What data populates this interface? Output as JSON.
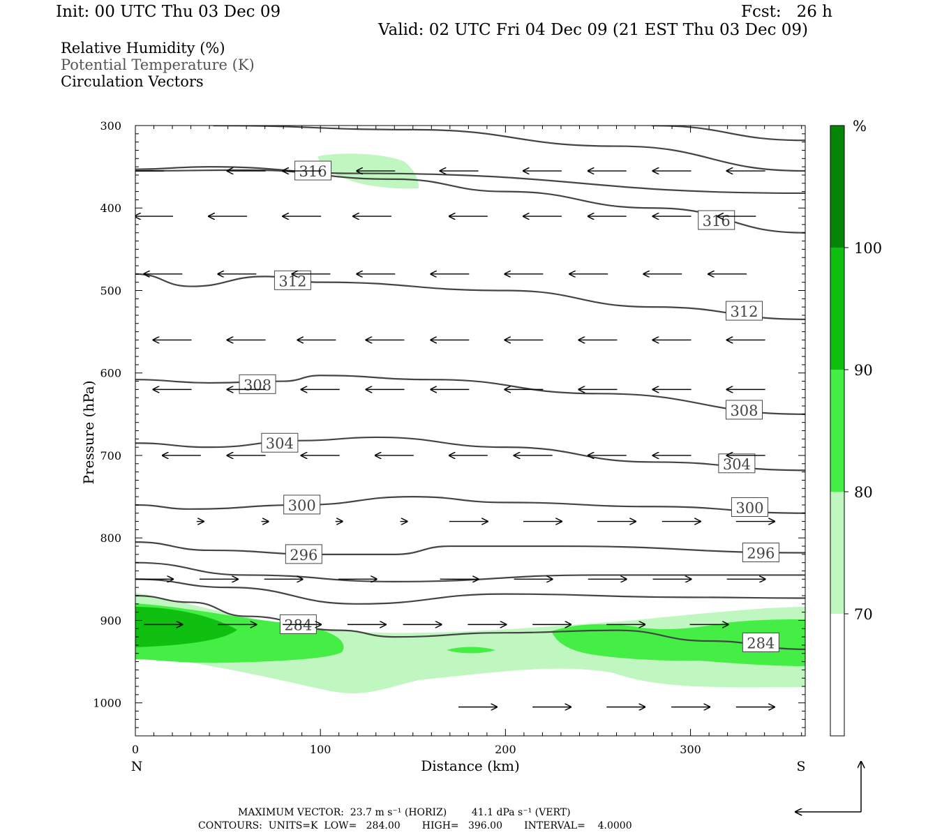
{
  "header": {
    "init": "Init: 00 UTC Thu 03 Dec 09",
    "fcst": "Fcst:   26 h",
    "valid": "Valid: 02 UTC Fri 04 Dec 09 (21 EST Thu 03 Dec 09)"
  },
  "legend": {
    "rh": "Relative Humidity (%)",
    "theta": "Potential Temperature (K)",
    "vectors": "Circulation Vectors"
  },
  "colors": {
    "rh70": "#c0f7c0",
    "rh80": "#44ee44",
    "rh90": "#10c010",
    "rh100": "#058505",
    "contour": "#444444"
  },
  "chart_data": {
    "type": "heatmap",
    "xlabel": "Distance (km)",
    "ylabel": "Pressure (hPa)",
    "xlim": [
      0,
      362
    ],
    "ylim": [
      1040,
      300
    ],
    "x_ticks": [
      0,
      100,
      200,
      300
    ],
    "y_ticks": [
      300,
      400,
      500,
      600,
      700,
      800,
      900,
      1000
    ],
    "x_end_labels": [
      "N",
      "S"
    ],
    "colorbar": {
      "unit": "%",
      "levels": [
        70,
        80,
        90,
        100
      ],
      "colors": [
        "#ffffff",
        "#c0f7c0",
        "#44ee44",
        "#10c010",
        "#058505"
      ]
    },
    "contours": [
      {
        "level": 284,
        "points": [
          [
            0,
            870
          ],
          [
            30,
            878
          ],
          [
            60,
            895
          ],
          [
            110,
            912
          ],
          [
            140,
            920
          ],
          [
            200,
            915
          ],
          [
            260,
            912
          ],
          [
            310,
            925
          ],
          [
            362,
            935
          ]
        ],
        "label_at": [
          [
            88,
            905
          ],
          [
            338,
            927
          ]
        ]
      },
      {
        "level": 288,
        "points": [
          [
            0,
            850
          ],
          [
            50,
            860
          ],
          [
            120,
            880
          ],
          [
            200,
            868
          ],
          [
            300,
            872
          ],
          [
            362,
            873
          ]
        ],
        "label_at": []
      },
      {
        "level": 292,
        "points": [
          [
            0,
            830
          ],
          [
            60,
            845
          ],
          [
            140,
            853
          ],
          [
            250,
            845
          ],
          [
            362,
            845
          ]
        ],
        "label_at": []
      },
      {
        "level": 296,
        "points": [
          [
            0,
            805
          ],
          [
            40,
            815
          ],
          [
            100,
            820
          ],
          [
            140,
            820
          ],
          [
            170,
            810
          ],
          [
            230,
            810
          ],
          [
            362,
            818
          ]
        ],
        "label_at": [
          [
            91,
            820
          ],
          [
            338,
            818
          ]
        ]
      },
      {
        "level": 300,
        "points": [
          [
            0,
            760
          ],
          [
            30,
            765
          ],
          [
            90,
            760
          ],
          [
            150,
            750
          ],
          [
            200,
            757
          ],
          [
            280,
            762
          ],
          [
            362,
            770
          ]
        ],
        "label_at": [
          [
            90,
            760
          ],
          [
            332,
            763
          ]
        ]
      },
      {
        "level": 304,
        "points": [
          [
            0,
            685
          ],
          [
            40,
            690
          ],
          [
            90,
            682
          ],
          [
            130,
            678
          ],
          [
            200,
            690
          ],
          [
            280,
            708
          ],
          [
            362,
            718
          ]
        ],
        "label_at": [
          [
            78,
            685
          ],
          [
            325,
            710
          ]
        ]
      },
      {
        "level": 308,
        "points": [
          [
            0,
            608
          ],
          [
            40,
            612
          ],
          [
            80,
            610
          ],
          [
            100,
            603
          ],
          [
            160,
            608
          ],
          [
            250,
            625
          ],
          [
            362,
            650
          ]
        ],
        "label_at": [
          [
            66,
            614
          ],
          [
            329,
            645
          ]
        ]
      },
      {
        "level": 312,
        "points": [
          [
            0,
            480
          ],
          [
            30,
            495
          ],
          [
            70,
            483
          ],
          [
            100,
            490
          ],
          [
            200,
            500
          ],
          [
            280,
            520
          ],
          [
            362,
            535
          ]
        ],
        "label_at": [
          [
            85,
            488
          ],
          [
            329,
            525
          ]
        ]
      },
      {
        "level": 316,
        "points": [
          [
            0,
            355
          ],
          [
            60,
            354
          ],
          [
            140,
            365
          ],
          [
            200,
            380
          ],
          [
            280,
            400
          ],
          [
            362,
            430
          ]
        ],
        "label_at": [
          [
            96,
            355
          ],
          [
            314,
            415
          ]
        ]
      },
      {
        "level": 320,
        "points": [
          [
            0,
            353
          ],
          [
            40,
            350
          ],
          [
            120,
            358
          ],
          [
            362,
            382
          ]
        ],
        "label_at": []
      },
      {
        "level": 324,
        "points": [
          [
            42,
            300
          ],
          [
            150,
            305
          ],
          [
            260,
            325
          ],
          [
            362,
            355
          ]
        ],
        "label_at": []
      },
      {
        "level": 328,
        "points": [
          [
            279,
            300
          ],
          [
            362,
            318
          ]
        ],
        "label_at": []
      }
    ],
    "vector_rows": [
      {
        "p": 355,
        "x": [
          5,
          60,
          90,
          130,
          175,
          220,
          255,
          290,
          330
        ],
        "u": [
          -1,
          -1,
          -1,
          -1,
          -1,
          -1,
          -1,
          -1,
          -1
        ]
      },
      {
        "p": 410,
        "x": [
          10,
          50,
          90,
          128,
          180,
          220,
          255,
          290,
          325
        ],
        "u": [
          -1,
          -1,
          -1,
          -1,
          -1,
          -1,
          -1,
          -1,
          -1
        ]
      },
      {
        "p": 480,
        "x": [
          15,
          55,
          95,
          130,
          170,
          210,
          245,
          285,
          320
        ],
        "u": [
          -1,
          -1,
          -1,
          -1,
          -1,
          -1,
          -1,
          -1,
          -1
        ]
      },
      {
        "p": 560,
        "x": [
          20,
          60,
          98,
          135,
          170,
          210,
          250,
          290,
          330
        ],
        "u": [
          -1,
          -1,
          -1,
          -1,
          -1,
          -1,
          -1,
          -1,
          -1
        ]
      },
      {
        "p": 620,
        "x": [
          20,
          60,
          100,
          135,
          170,
          210,
          250,
          290,
          330
        ],
        "u": [
          -1,
          -1,
          -1,
          -1,
          -1,
          -1,
          -1,
          -1,
          -1
        ]
      },
      {
        "p": 700,
        "x": [
          25,
          60,
          100,
          140,
          180,
          215,
          255,
          290,
          330
        ],
        "u": [
          -1,
          -1,
          -1,
          -1,
          -1,
          -1,
          -1,
          -1,
          -1
        ]
      },
      {
        "p": 780,
        "x": [
          35,
          70,
          110,
          145,
          180,
          220,
          260,
          295,
          335
        ],
        "u": [
          0,
          0,
          0,
          0,
          1,
          1,
          1,
          1,
          1
        ]
      },
      {
        "p": 850,
        "x": [
          10,
          45,
          80,
          120,
          175,
          215,
          255,
          290,
          330
        ],
        "u": [
          1,
          1,
          1,
          1,
          1,
          1,
          1,
          1,
          1
        ]
      },
      {
        "p": 905,
        "x": [
          15,
          55,
          90,
          125,
          155,
          190,
          225,
          265,
          310
        ],
        "u": [
          1,
          1,
          1,
          1,
          1,
          1,
          1,
          1,
          1
        ]
      },
      {
        "p": 1005,
        "x": [
          185,
          225,
          265,
          300,
          335
        ],
        "u": [
          1,
          1,
          1,
          1,
          1
        ]
      }
    ],
    "footer": {
      "max_vector": "MAXIMUM VECTOR:  23.7 m s⁻¹ (HORIZ)        41.1 dPa s⁻¹ (VERT)",
      "contours": "CONTOURS:  UNITS=K  LOW=   284.00       HIGH=   396.00       INTERVAL=    4.0000"
    }
  }
}
